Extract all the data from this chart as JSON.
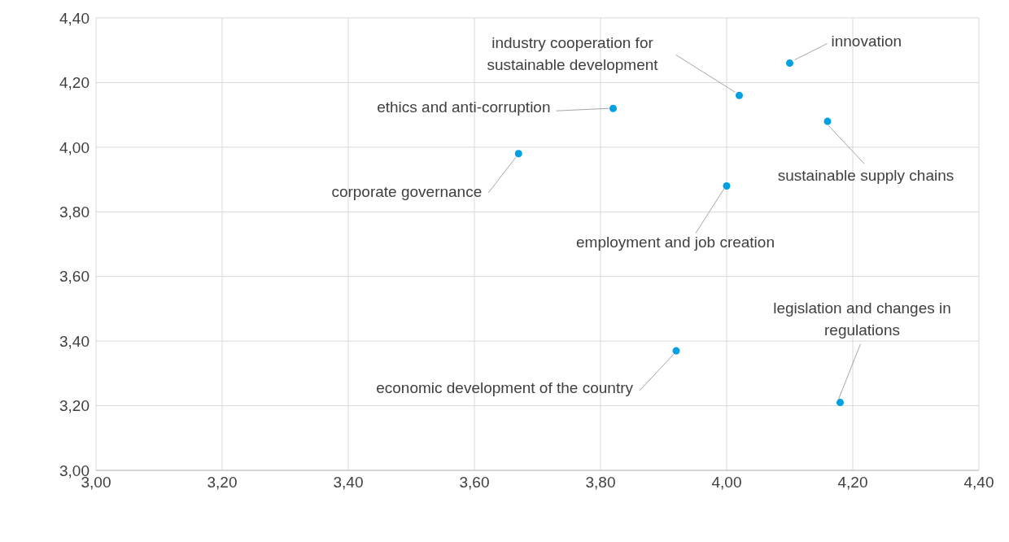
{
  "chart_data": {
    "type": "scatter",
    "x": [
      4.1,
      4.02,
      3.82,
      4.16,
      3.67,
      4.0,
      3.92,
      4.18
    ],
    "values": [
      4.26,
      4.16,
      4.12,
      4.08,
      3.98,
      3.88,
      3.37,
      3.21
    ],
    "color": "#00a0e3",
    "marker": "circle",
    "grid": true,
    "legend": false,
    "xlim": [
      3.0,
      4.4
    ],
    "ylim": [
      3.0,
      4.4
    ],
    "xticks": [
      {
        "value": 3.0,
        "label": "3,00"
      },
      {
        "value": 3.2,
        "label": "3,20"
      },
      {
        "value": 3.4,
        "label": "3,40"
      },
      {
        "value": 3.6,
        "label": "3,60"
      },
      {
        "value": 3.8,
        "label": "3,80"
      },
      {
        "value": 4.0,
        "label": "4,00"
      },
      {
        "value": 4.2,
        "label": "4,20"
      },
      {
        "value": 4.4,
        "label": "4,40"
      }
    ],
    "yticks": [
      {
        "value": 3.0,
        "label": "3,00"
      },
      {
        "value": 3.2,
        "label": "3,20"
      },
      {
        "value": 3.4,
        "label": "3,40"
      },
      {
        "value": 3.6,
        "label": "3,60"
      },
      {
        "value": 3.8,
        "label": "3,80"
      },
      {
        "value": 4.0,
        "label": "4,00"
      },
      {
        "value": 4.2,
        "label": "4,20"
      },
      {
        "value": 4.4,
        "label": "4,40"
      }
    ],
    "annotations": [
      {
        "text": "innovation",
        "x": 4.1,
        "y": 4.26
      },
      {
        "text": "industry cooperation for sustainable development",
        "x": 4.02,
        "y": 4.16
      },
      {
        "text": "ethics and anti-corruption",
        "x": 3.82,
        "y": 4.12
      },
      {
        "text": "sustainable supply chains",
        "x": 4.16,
        "y": 4.08
      },
      {
        "text": "corporate governance",
        "x": 3.67,
        "y": 3.98
      },
      {
        "text": "employment and job creation",
        "x": 4.0,
        "y": 3.88
      },
      {
        "text": "economic development of the country",
        "x": 3.92,
        "y": 3.37
      },
      {
        "text": "legislation and changes in regulations",
        "x": 4.18,
        "y": 3.21
      }
    ]
  }
}
